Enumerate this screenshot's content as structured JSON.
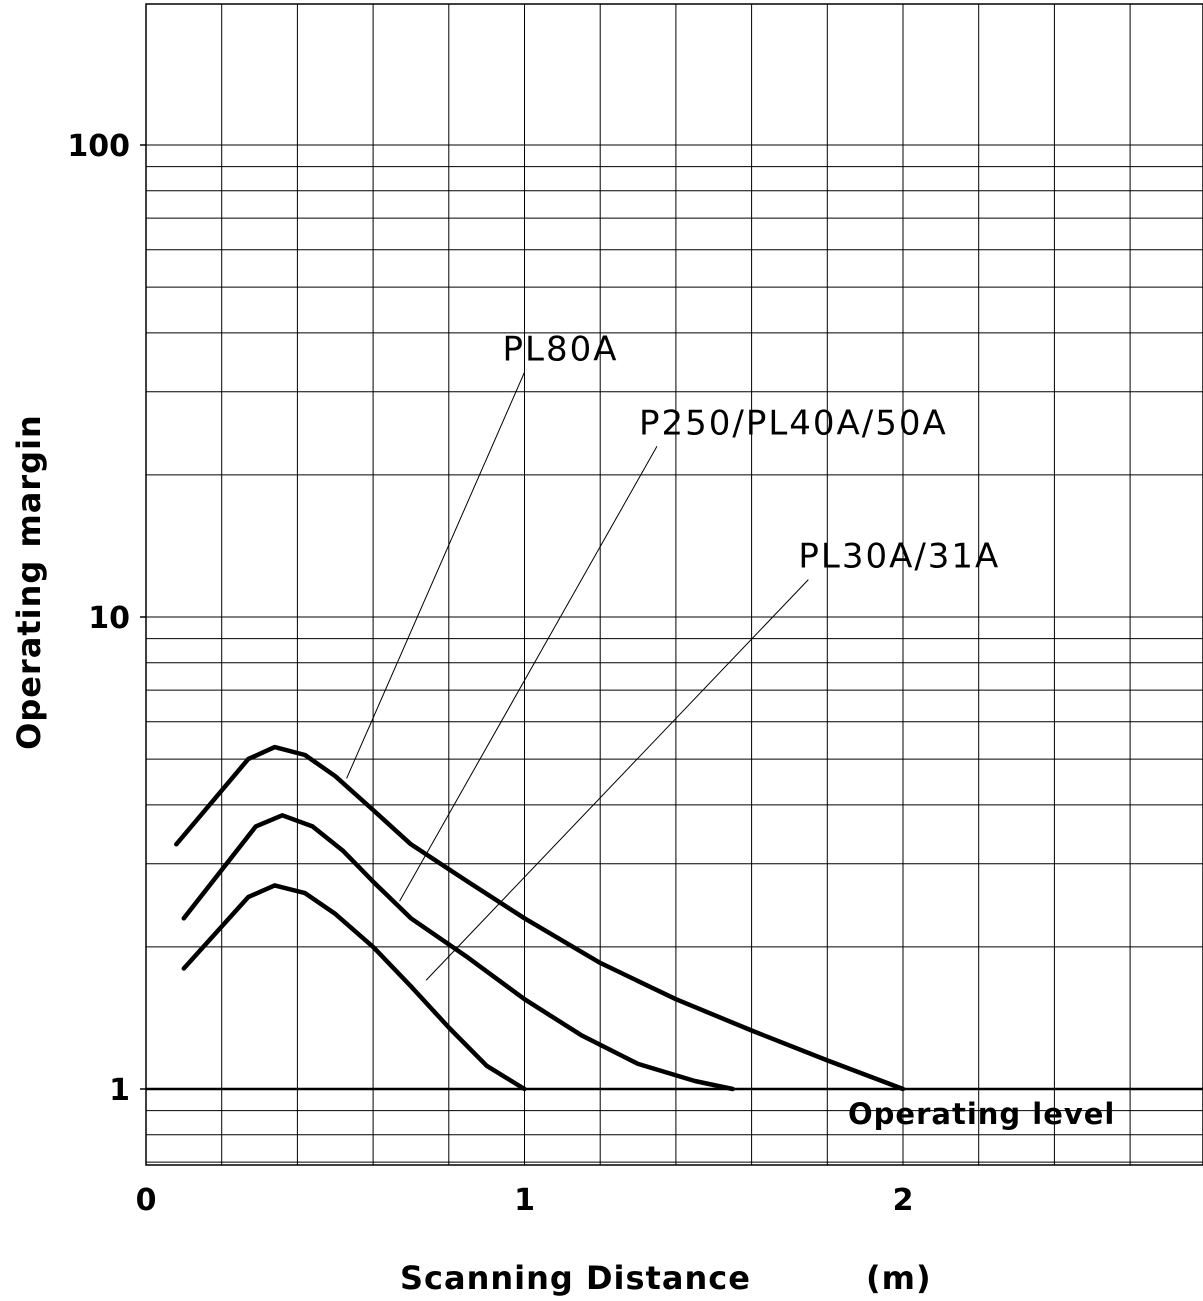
{
  "chart_data": {
    "type": "line",
    "title": "",
    "xlabel": "Scanning Distance",
    "xunit": "(m)",
    "ylabel": "Operating margin",
    "yscale": "log",
    "xlim": [
      0,
      2.8
    ],
    "ylim": [
      0.5,
      300
    ],
    "grid": true,
    "x_ticks": [
      {
        "value": 0,
        "label": "0"
      },
      {
        "value": 1,
        "label": "1"
      },
      {
        "value": 2,
        "label": "2"
      }
    ],
    "y_ticks": [
      {
        "value": 1,
        "label": "1"
      },
      {
        "value": 10,
        "label": "10"
      },
      {
        "value": 100,
        "label": "100"
      }
    ],
    "operating_level": {
      "value": 1,
      "label": "Operating level"
    },
    "series": [
      {
        "name": "PL80A",
        "x": [
          0.08,
          0.27,
          0.34,
          0.42,
          0.5,
          0.6,
          0.7,
          0.85,
          1.0,
          1.2,
          1.4,
          1.6,
          1.8,
          2.0
        ],
        "y": [
          3.3,
          5.0,
          5.3,
          5.1,
          4.6,
          3.9,
          3.3,
          2.75,
          2.3,
          1.85,
          1.55,
          1.33,
          1.15,
          1.0
        ],
        "label_pos": {
          "x": 0.53,
          "y": 4.55
        },
        "callout": {
          "x": 1.0,
          "y": 33
        }
      },
      {
        "name": "P250/PL40A/50A",
        "x": [
          0.1,
          0.29,
          0.36,
          0.44,
          0.52,
          0.6,
          0.7,
          0.85,
          1.0,
          1.15,
          1.3,
          1.45,
          1.55
        ],
        "y": [
          2.3,
          3.6,
          3.8,
          3.6,
          3.2,
          2.75,
          2.3,
          1.9,
          1.55,
          1.3,
          1.13,
          1.04,
          1.0
        ],
        "label_pos": {
          "x": 0.67,
          "y": 2.5
        },
        "callout": {
          "x": 1.35,
          "y": 23
        }
      },
      {
        "name": "PL30A/31A",
        "x": [
          0.1,
          0.27,
          0.34,
          0.42,
          0.5,
          0.6,
          0.7,
          0.8,
          0.9,
          1.0
        ],
        "y": [
          1.8,
          2.55,
          2.7,
          2.6,
          2.35,
          2.0,
          1.65,
          1.35,
          1.12,
          1.0
        ],
        "label_pos": {
          "x": 0.74,
          "y": 1.7
        },
        "callout": {
          "x": 1.75,
          "y": 12
        }
      }
    ]
  }
}
